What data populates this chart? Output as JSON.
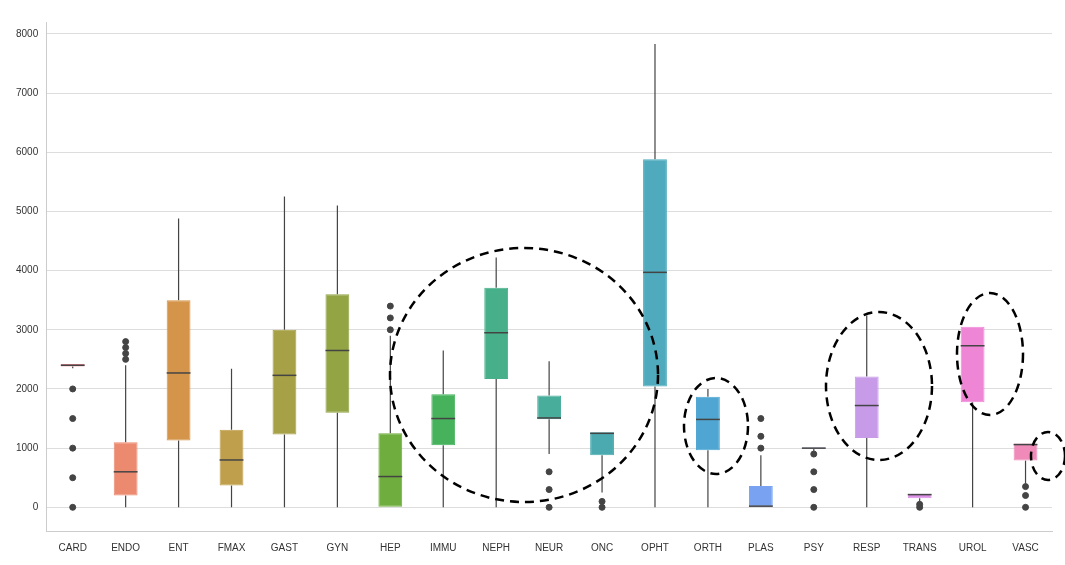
{
  "chart_data": {
    "type": "box",
    "categories": [
      "CARD",
      "ENDO",
      "ENT",
      "FMAX",
      "GAST",
      "GYN",
      "HEP",
      "IMMU",
      "NEPH",
      "NEUR",
      "ONC",
      "OPHT",
      "ORTH",
      "PLAS",
      "PSY",
      "RESP",
      "TRANS",
      "UROL",
      "VASC"
    ],
    "colors": [
      "#f0848f",
      "#ec8a70",
      "#d4954a",
      "#bf9f4b",
      "#a6a046",
      "#92a444",
      "#6fad3e",
      "#46b25c",
      "#47b08a",
      "#49ad9c",
      "#4aaab0",
      "#4eaabc",
      "#4fa6d2",
      "#79a3f0",
      "#9d9ce8",
      "#c79be8",
      "#dc90e6",
      "#ef86d5",
      "#f08ab8"
    ],
    "boxes": [
      {
        "low": 2350,
        "q1": 2380,
        "median": 2400,
        "q3": 2420,
        "high": 2420,
        "outliers": [
          0,
          500,
          1000,
          1500,
          2000
        ]
      },
      {
        "low": 0,
        "q1": 200,
        "median": 600,
        "q3": 1100,
        "high": 2400,
        "outliers": [
          2500,
          2600,
          2700,
          2800
        ]
      },
      {
        "low": 0,
        "q1": 1130,
        "median": 2270,
        "q3": 3500,
        "high": 4880
      },
      {
        "low": 0,
        "q1": 370,
        "median": 800,
        "q3": 1310,
        "high": 2340
      },
      {
        "low": 0,
        "q1": 1230,
        "median": 2230,
        "q3": 3000,
        "high": 5250
      },
      {
        "low": 0,
        "q1": 1600,
        "median": 2650,
        "q3": 3600,
        "high": 5100
      },
      {
        "low": 0,
        "q1": 0,
        "median": 520,
        "q3": 1250,
        "high": 2900,
        "outliers": [
          3000,
          3200,
          3400
        ]
      },
      {
        "low": 0,
        "q1": 1050,
        "median": 1500,
        "q3": 1910,
        "high": 2650
      },
      {
        "low": 0,
        "q1": 2170,
        "median": 2950,
        "q3": 3710,
        "high": 4220
      },
      {
        "low": 900,
        "q1": 1490,
        "median": 1510,
        "q3": 1890,
        "high": 2470,
        "outliers": [
          0,
          300,
          600
        ]
      },
      {
        "low": 250,
        "q1": 880,
        "median": 1250,
        "q3": 1270,
        "high": 1270,
        "outliers": [
          0,
          100
        ]
      },
      {
        "low": 0,
        "q1": 2040,
        "median": 3970,
        "q3": 5880,
        "high": 7830
      },
      {
        "low": 0,
        "q1": 965,
        "median": 1485,
        "q3": 1870,
        "high": 2000
      },
      {
        "low": 0,
        "q1": 0,
        "median": 20,
        "q3": 360,
        "high": 880,
        "outliers": [
          1000,
          1200,
          1500
        ]
      },
      {
        "low": 950,
        "q1": 990,
        "median": 1000,
        "q3": 1010,
        "high": 1010,
        "outliers": [
          0,
          300,
          600,
          900
        ]
      },
      {
        "low": 0,
        "q1": 1170,
        "median": 1720,
        "q3": 2210,
        "high": 3240
      },
      {
        "low": 100,
        "q1": 155,
        "median": 215,
        "q3": 230,
        "high": 230,
        "outliers": [
          0,
          50
        ]
      },
      {
        "low": 0,
        "q1": 1775,
        "median": 2730,
        "q3": 3050,
        "high": 3050
      },
      {
        "low": 400,
        "q1": 790,
        "median": 1060,
        "q3": 1080,
        "high": 1080,
        "outliers": [
          0,
          200,
          350
        ]
      }
    ],
    "ylim": [
      -400,
      8200
    ],
    "yticks": [
      0,
      1000,
      2000,
      3000,
      4000,
      5000,
      6000,
      7000,
      8000
    ],
    "grid": "y",
    "legend": false
  }
}
